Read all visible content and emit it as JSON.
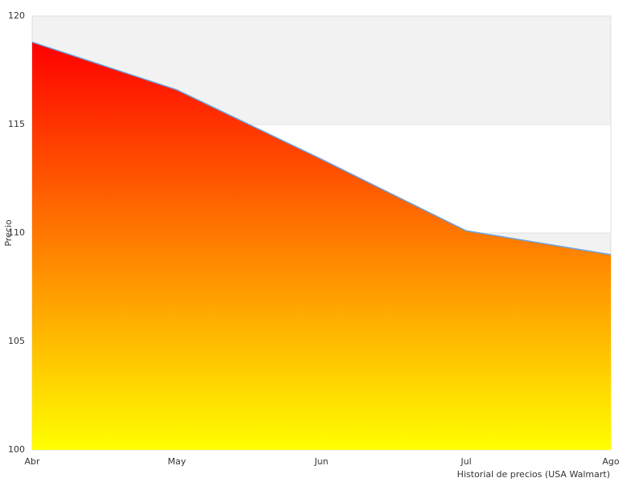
{
  "chart_data": {
    "type": "area",
    "x_label": "Historial de precios (USA Walmart)",
    "y_label": "Precio",
    "categories": [
      "Abr",
      "May",
      "Jun",
      "Jul",
      "Ago"
    ],
    "values": [
      118.8,
      116.6,
      113.4,
      110.1,
      109.0
    ],
    "line_color": "#6aa3e0",
    "gradient": [
      "#ff0000",
      "#ffff00"
    ],
    "band_colors": [
      "#f2f2f2",
      "#ffffff"
    ],
    "ylim": [
      100,
      120
    ],
    "yticks": [
      100,
      105,
      110,
      115,
      120
    ]
  }
}
